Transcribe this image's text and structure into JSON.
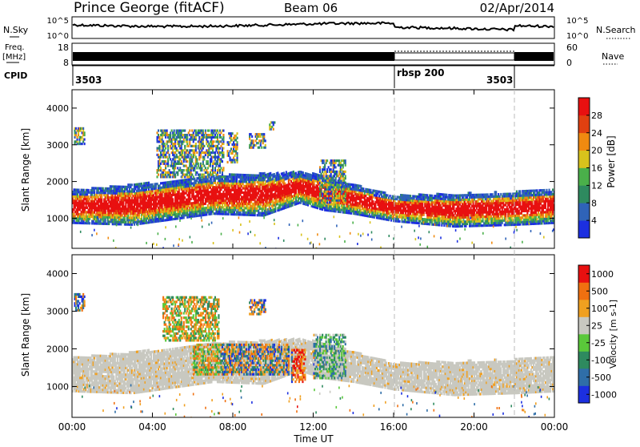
{
  "header": {
    "station": "Prince George (fitACF)",
    "beam": "Beam 06",
    "date": "02/Apr/2014"
  },
  "strips": {
    "sky_label": "N.Sky",
    "search_label": "N.Search",
    "freq_label_1": "Freq.",
    "freq_label_2": "[MHz]",
    "nave_label": "Nave",
    "cpid_label": "CPID",
    "noise_ticks": [
      "10^5",
      "10^0"
    ],
    "freq_ticks": [
      "18",
      "8"
    ],
    "nave_ticks": [
      "60",
      "0"
    ],
    "cpid_segments": [
      {
        "label": "3503",
        "start_h": 0,
        "end_h": 16
      },
      {
        "label": "rbsp 200",
        "start_h": 16,
        "end_h": 22
      },
      {
        "label": "3503",
        "start_h": 22,
        "end_h": 24
      }
    ]
  },
  "chart_data": [
    {
      "type": "heatmap",
      "panel": "power",
      "xlabel": "",
      "ylabel": "Slant Range [km]",
      "xlim": [
        0,
        24
      ],
      "ylim": [
        180,
        4500
      ],
      "yticks": [
        1000,
        2000,
        3000,
        4000
      ],
      "colorbar": {
        "label": "Power [dB]",
        "ticks": [
          "4",
          "8",
          "12",
          "16",
          "20",
          "24",
          "28"
        ],
        "colors": [
          "#1c2fe0",
          "#2f63b8",
          "#2e8a5f",
          "#4ab04a",
          "#d8c21c",
          "#f08a10",
          "#e04010",
          "#e81010"
        ]
      },
      "bands": [
        {
          "t": 0.0,
          "low": 850,
          "high": 1750,
          "core_low": 1000,
          "core_high": 1450
        },
        {
          "t": 3.0,
          "low": 800,
          "high": 1900,
          "core_low": 950,
          "core_high": 1500
        },
        {
          "t": 5.0,
          "low": 950,
          "high": 2000,
          "core_low": 1100,
          "core_high": 1600
        },
        {
          "t": 7.0,
          "low": 1100,
          "high": 2150,
          "core_low": 1300,
          "core_high": 1900
        },
        {
          "t": 9.5,
          "low": 1050,
          "high": 2200,
          "core_low": 1250,
          "core_high": 1900
        },
        {
          "t": 11.3,
          "low": 1400,
          "high": 2250,
          "core_low": 1600,
          "core_high": 2100
        },
        {
          "t": 12.5,
          "low": 1200,
          "high": 2150,
          "core_low": 1350,
          "core_high": 1800
        },
        {
          "t": 14.0,
          "low": 1100,
          "high": 1900,
          "core_low": 1200,
          "core_high": 1500
        },
        {
          "t": 16.0,
          "low": 900,
          "high": 1600,
          "core_low": 1050,
          "core_high": 1300
        },
        {
          "t": 19.0,
          "low": 750,
          "high": 1650,
          "core_low": 850,
          "core_high": 1400
        },
        {
          "t": 22.0,
          "low": 800,
          "high": 1700,
          "core_low": 900,
          "core_high": 1400
        },
        {
          "t": 24.0,
          "low": 850,
          "high": 1800,
          "core_low": 950,
          "core_high": 1400
        }
      ],
      "patches": [
        {
          "t0": 0.1,
          "t1": 0.6,
          "r0": 3000,
          "r1": 3450
        },
        {
          "t0": 4.2,
          "t1": 7.5,
          "r0": 2100,
          "r1": 3400
        },
        {
          "t0": 7.7,
          "t1": 8.2,
          "r0": 2500,
          "r1": 3300
        },
        {
          "t0": 8.8,
          "t1": 9.6,
          "r0": 2900,
          "r1": 3300
        },
        {
          "t0": 9.8,
          "t1": 10.1,
          "r0": 3400,
          "r1": 3600
        },
        {
          "t0": 12.3,
          "t1": 13.6,
          "r0": 1400,
          "r1": 2600
        }
      ]
    },
    {
      "type": "heatmap",
      "panel": "velocity",
      "xlabel": "Time UT",
      "ylabel": "Slant Range [km]",
      "xlim": [
        0,
        24
      ],
      "ylim": [
        180,
        4500
      ],
      "xticks": [
        "00:00",
        "04:00",
        "08:00",
        "12:00",
        "16:00",
        "20:00",
        "00:00"
      ],
      "yticks": [
        1000,
        2000,
        3000,
        4000
      ],
      "colorbar": {
        "label": "Velocity [m s-1]",
        "ticks": [
          "1000",
          "500",
          "100",
          "25",
          "-25",
          "-100",
          "-500",
          "-1000"
        ],
        "colors": [
          "#1c2fe0",
          "#2f6ea8",
          "#2e8a5f",
          "#5ac83a",
          "#c8c8c0",
          "#f0a020",
          "#f07010",
          "#e81010"
        ]
      },
      "bands": [
        {
          "t": 0.0,
          "low": 850,
          "high": 1750
        },
        {
          "t": 3.0,
          "low": 800,
          "high": 1900
        },
        {
          "t": 5.0,
          "low": 950,
          "high": 2000
        },
        {
          "t": 7.0,
          "low": 1100,
          "high": 2150
        },
        {
          "t": 9.5,
          "low": 1050,
          "high": 2200
        },
        {
          "t": 11.3,
          "low": 1400,
          "high": 2250
        },
        {
          "t": 12.5,
          "low": 1200,
          "high": 2150
        },
        {
          "t": 14.0,
          "low": 1100,
          "high": 1900
        },
        {
          "t": 16.0,
          "low": 900,
          "high": 1600
        },
        {
          "t": 19.0,
          "low": 750,
          "high": 1650
        },
        {
          "t": 22.0,
          "low": 800,
          "high": 1700
        },
        {
          "t": 24.0,
          "low": 850,
          "high": 1800
        }
      ],
      "patches": [
        {
          "t0": 0.1,
          "t1": 0.6,
          "r0": 3000,
          "r1": 3450
        },
        {
          "t0": 4.5,
          "t1": 7.3,
          "r0": 2200,
          "r1": 3400
        },
        {
          "t0": 6.0,
          "t1": 10.8,
          "r0": 1300,
          "r1": 2100
        },
        {
          "t0": 10.9,
          "t1": 11.6,
          "r0": 1100,
          "r1": 2000
        },
        {
          "t0": 12.0,
          "t1": 13.6,
          "r0": 1200,
          "r1": 2400
        },
        {
          "t0": 8.8,
          "t1": 9.6,
          "r0": 2900,
          "r1": 3300
        }
      ]
    }
  ]
}
